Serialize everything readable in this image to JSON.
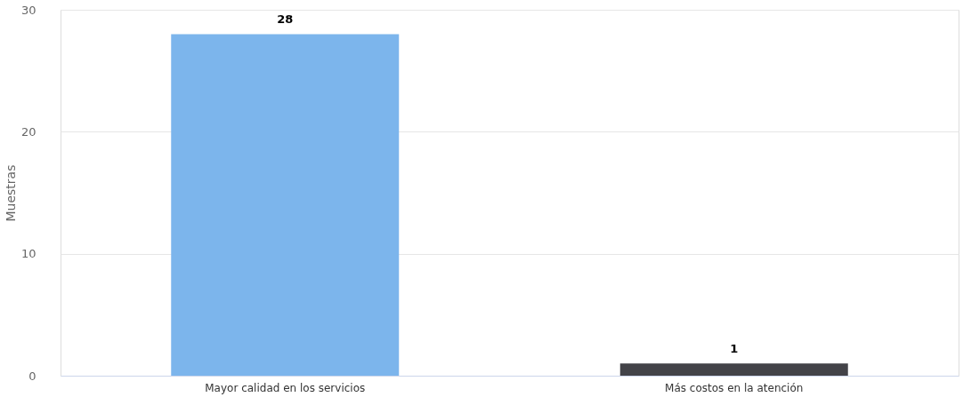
{
  "chart_data": {
    "type": "bar",
    "ylabel": "Muestras",
    "categories": [
      "Mayor calidad en los servicios",
      "Más costos en la atención"
    ],
    "values": [
      28,
      1
    ],
    "colors": [
      "#7cb5ec",
      "#434348"
    ],
    "ylim": [
      0,
      30
    ],
    "yticks": [
      0,
      10,
      20,
      30
    ],
    "grid": "y",
    "data_labels": true
  }
}
